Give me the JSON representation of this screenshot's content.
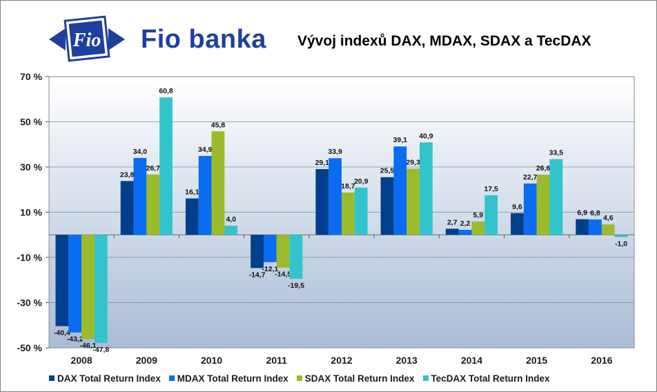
{
  "brand": {
    "logo_text": "Fio",
    "name": "Fio banka"
  },
  "chart_data": {
    "type": "bar",
    "title": "Vývoj indexů DAX, MDAX, SDAX a TecDAX",
    "categories": [
      "2008",
      "2009",
      "2010",
      "2011",
      "2012",
      "2013",
      "2014",
      "2015",
      "2016"
    ],
    "ylim": [
      -50,
      70
    ],
    "yticks": [
      70,
      50,
      30,
      10,
      -10,
      -30,
      -50
    ],
    "ytick_labels": [
      "70 %",
      "50 %",
      "30 %",
      "10 %",
      "-10 %",
      "-30 %",
      "-50 %"
    ],
    "grid": true,
    "legend_position": "bottom",
    "series": [
      {
        "name": "DAX Total Return Index",
        "color": "#003f8c",
        "values": [
          -40.4,
          23.8,
          16.1,
          -14.7,
          29.1,
          25.5,
          2.7,
          9.6,
          6.9
        ],
        "labels": [
          "-40,4",
          "23,8",
          "16,1",
          "-14,7",
          "29,1",
          "25,5",
          "2,7",
          "9,6",
          "6,9"
        ]
      },
      {
        "name": "MDAX Total Return Index",
        "color": "#0a6cf0",
        "values": [
          -43.2,
          34.0,
          34.9,
          -12.1,
          33.9,
          39.1,
          2.2,
          22.7,
          6.8
        ],
        "labels": [
          "-43,2",
          "34,0",
          "34,9",
          "-12,1",
          "33,9",
          "39,1",
          "2,2",
          "22,7",
          "6,8"
        ]
      },
      {
        "name": "SDAX Total Return Index",
        "color": "#9bbb2c",
        "values": [
          -46.1,
          26.7,
          45.8,
          -14.5,
          18.7,
          29.3,
          5.9,
          26.6,
          4.6
        ],
        "labels": [
          "-46,1",
          "26,7",
          "45,8",
          "-14,5",
          "18,7",
          "29,3",
          "5,9",
          "26,6",
          "4,6"
        ]
      },
      {
        "name": "TecDAX Total Return Index",
        "color": "#33c3cc",
        "values": [
          -47.8,
          60.8,
          4.0,
          -19.5,
          20.9,
          40.9,
          17.5,
          33.5,
          -1.0
        ],
        "labels": [
          "-47,8",
          "60,8",
          "4,0",
          "-19,5",
          "20,9",
          "40,9",
          "17,5",
          "33,5",
          "-1,0"
        ]
      }
    ]
  }
}
